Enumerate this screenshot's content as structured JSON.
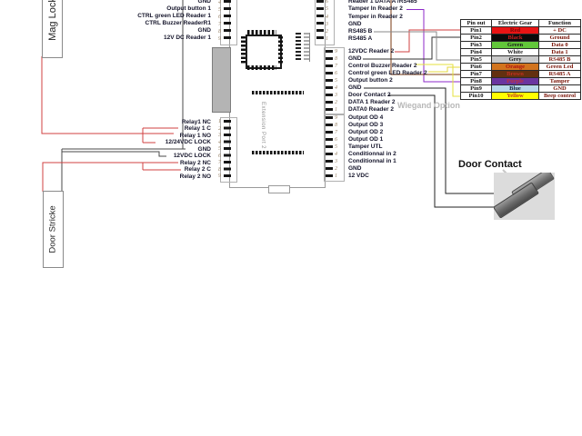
{
  "labels": {
    "mag_lock": "Mag Lock",
    "door_strike": "Door Stricke",
    "extension_port": "Extension Port 2",
    "wiegand_note": "Wiegand Option",
    "door_contact": "Door Contact"
  },
  "pins": {
    "left_top": {
      "numbers": [
        "4",
        "5",
        "6",
        "7",
        "8",
        "9"
      ],
      "labels": [
        "GND",
        "Output button 1",
        "CTRL green  LED Reader 1",
        "CTRL Buzzer  ReaderR1",
        "GND",
        "12V DC Reader 1"
      ]
    },
    "left_relay": {
      "numbers": [
        "1",
        "2",
        "3",
        "4",
        "5",
        "6",
        "7",
        "8",
        "9"
      ],
      "labels": [
        "Relay1 NC",
        "Relay 1 C",
        "Relay 1 NO",
        "12/24VDC LOCK",
        "GND",
        "12VDC LOCK",
        "Relay 2 NC",
        "Relay 2 C",
        "Relay 2 NO"
      ]
    },
    "right_a": {
      "numbers": [
        "6",
        "5",
        "4",
        "3",
        "2",
        "1"
      ],
      "labels": [
        "Reader 1 DATA A /RS485",
        "Tamper In Reader 2",
        "Temper in Reader 2",
        "GND",
        "RS485 B",
        "RS485 A"
      ]
    },
    "right_b": {
      "numbers": [
        "9",
        "8",
        "7",
        "6",
        "5",
        "4",
        "3",
        "2",
        "1"
      ],
      "labels": [
        "12VDC Reader 2",
        "GND",
        "Control Buzzer Reader 2",
        "Control green LED Reader 2",
        "Output button 2",
        "GND",
        "Door Contact 2",
        "DATA 1 Reader 2",
        "DATA0 Reader 2"
      ]
    },
    "right_c": {
      "numbers": [
        "9",
        "8",
        "7",
        "6",
        "5",
        "4",
        "3",
        "2",
        "1"
      ],
      "labels": [
        "Output OD 4",
        "Output OD 3",
        "Output OD 2",
        "Output OD 1",
        "Tamper  UTL",
        "Conditionnal in 2",
        "Conditionnal in 1",
        "GND",
        "12 VDC"
      ]
    }
  },
  "table": {
    "headers": [
      "Pin out",
      "Electric Gear",
      "Function"
    ],
    "rows": [
      {
        "pin": "Pin1",
        "color": "Red",
        "bg": "#e81414",
        "fg": "#7a0505",
        "function": "+ DC"
      },
      {
        "pin": "Pin2",
        "color": "Black",
        "bg": "#0a0a0a",
        "fg": "#cc2020",
        "function": "Ground"
      },
      {
        "pin": "Pin3",
        "color": "Green",
        "bg": "#62c63a",
        "fg": "#1a1a1a",
        "function": "Data 0"
      },
      {
        "pin": "Pin4",
        "color": "White",
        "bg": "#ffffff",
        "fg": "#1a1a1a",
        "function": "Data 1"
      },
      {
        "pin": "Pin5",
        "color": "Grey",
        "bg": "#c9c9c9",
        "fg": "#1a1a1a",
        "function": "RS485 B"
      },
      {
        "pin": "Pin6",
        "color": "Orange",
        "bg": "#d2741e",
        "fg": "#b01010",
        "function": "Green Led"
      },
      {
        "pin": "Pin7",
        "color": "Brown",
        "bg": "#63300f",
        "fg": "#c03020",
        "function": "RS485 A"
      },
      {
        "pin": "Pin8",
        "color": "Purple",
        "bg": "#6a35a0",
        "fg": "#c03040",
        "function": "Tamper"
      },
      {
        "pin": "Pin9",
        "color": "Blue",
        "bg": "#b8d8ea",
        "fg": "#10203a",
        "function": "GND"
      },
      {
        "pin": "Pin10",
        "color": "Yellow",
        "bg": "#ffff00",
        "fg": "#c03020",
        "function": "Beep control"
      }
    ]
  },
  "wire_colors": {
    "red": "#d04040",
    "grey": "#4a4a4a",
    "black": "#222222",
    "purple": "#8c28c8",
    "brown": "#7a3810",
    "light_grey": "#8a8a8a",
    "yellow": "#e6e23c"
  }
}
